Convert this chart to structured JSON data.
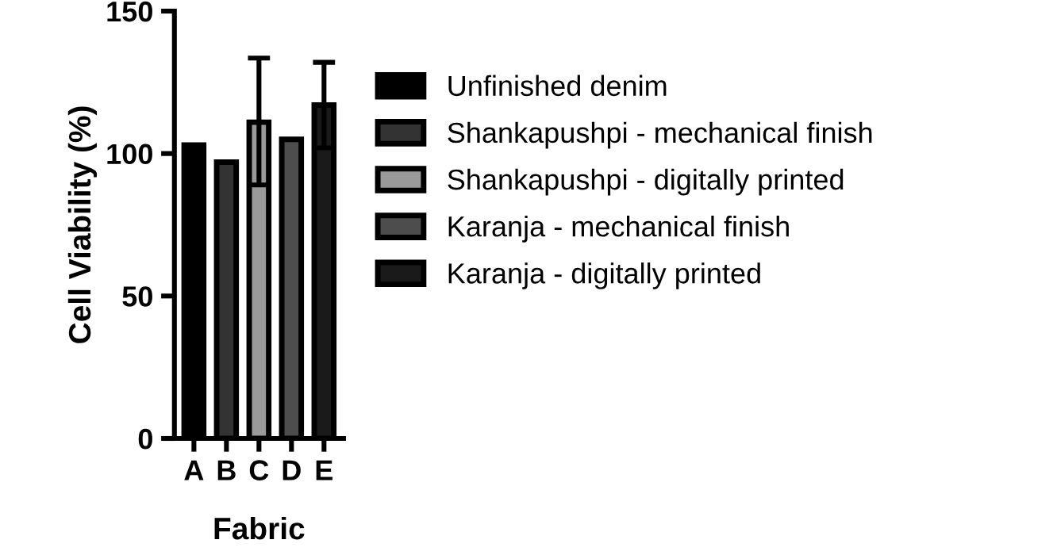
{
  "chart_data": {
    "type": "bar",
    "xlabel": "Fabric",
    "ylabel": "Cell Viability (%)",
    "categories": [
      "A",
      "B",
      "C",
      "D",
      "E"
    ],
    "series": [
      {
        "name": "Unfinished denim",
        "color": "#000000",
        "values": [
          103,
          null,
          null,
          null,
          null
        ]
      },
      {
        "name": "Shankapushpi - mechanical finish",
        "color": "#333333",
        "values": [
          null,
          97,
          null,
          null,
          null
        ]
      },
      {
        "name": "Shankapushpi - digitally printed",
        "color": "#9a9a9a",
        "values": [
          null,
          null,
          111,
          null,
          null
        ],
        "errors": [
          null,
          null,
          [
            89,
            133.5
          ],
          null,
          null
        ]
      },
      {
        "name": "Karanja - mechanical finish",
        "color": "#4d4d4d",
        "values": [
          null,
          null,
          null,
          105,
          null
        ]
      },
      {
        "name": "Karanja - digitally printed",
        "color": "#1a1a1a",
        "values": [
          null,
          null,
          null,
          null,
          117
        ],
        "errors": [
          null,
          null,
          null,
          null,
          [
            102,
            132
          ]
        ]
      }
    ],
    "ylim": [
      0,
      150
    ],
    "yticks": [
      0,
      50,
      100,
      150
    ],
    "grid": false,
    "legend": "right"
  }
}
